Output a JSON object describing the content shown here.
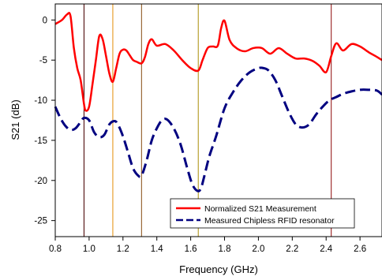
{
  "chart_data": {
    "type": "line",
    "xlabel": "Frequency (GHz)",
    "ylabel": "S21 (dB)",
    "xlim": [
      0.8,
      2.73
    ],
    "ylim": [
      -27,
      2
    ],
    "xticks": [
      0.8,
      1.0,
      1.2,
      1.4,
      1.6,
      1.8,
      2.0,
      2.2,
      2.4,
      2.6
    ],
    "xtick_labels": [
      "0.8",
      "1.0",
      "1.2",
      "1.4",
      "1.6",
      "1.8",
      "2.0",
      "2.2",
      "2.4",
      "2.6"
    ],
    "yticks": [
      0,
      -5,
      -10,
      -15,
      -20,
      -25
    ],
    "ytick_labels": [
      "0",
      "-5",
      "-10",
      "-15",
      "-20",
      "-25"
    ],
    "grid": false,
    "legend_position": "bottom-right",
    "vertical_lines": [
      {
        "x": 0.97,
        "color": "#5a1a1a"
      },
      {
        "x": 1.14,
        "color": "#e8a030"
      },
      {
        "x": 1.31,
        "color": "#9a6a3a"
      },
      {
        "x": 1.645,
        "color": "#b8a030"
      },
      {
        "x": 2.43,
        "color": "#a03030"
      }
    ],
    "series": [
      {
        "name": "Normalized S21 Measurement",
        "color": "#ff0000",
        "style": "solid",
        "x": [
          0.8,
          0.84,
          0.87,
          0.89,
          0.91,
          0.93,
          0.95,
          0.97,
          0.98,
          1.0,
          1.02,
          1.04,
          1.06,
          1.08,
          1.1,
          1.12,
          1.14,
          1.16,
          1.18,
          1.2,
          1.22,
          1.24,
          1.26,
          1.28,
          1.31,
          1.33,
          1.35,
          1.37,
          1.4,
          1.45,
          1.5,
          1.55,
          1.6,
          1.645,
          1.67,
          1.7,
          1.73,
          1.76,
          1.78,
          1.8,
          1.83,
          1.87,
          1.92,
          1.97,
          2.02,
          2.07,
          2.12,
          2.17,
          2.22,
          2.27,
          2.32,
          2.36,
          2.4,
          2.43,
          2.46,
          2.5,
          2.55,
          2.6,
          2.65,
          2.7,
          2.73
        ],
        "y": [
          -0.5,
          0.0,
          0.7,
          0.5,
          -3.5,
          -6.0,
          -7.5,
          -10.5,
          -11.3,
          -10.8,
          -8.0,
          -5.0,
          -2.0,
          -2.4,
          -4.5,
          -6.7,
          -7.7,
          -6.0,
          -4.2,
          -3.7,
          -3.8,
          -4.4,
          -5.0,
          -5.2,
          -5.4,
          -4.6,
          -3.0,
          -2.4,
          -3.2,
          -3.0,
          -3.8,
          -5.0,
          -6.0,
          -6.3,
          -5.0,
          -3.5,
          -3.3,
          -3.2,
          -1.0,
          -0.1,
          -2.5,
          -3.5,
          -3.9,
          -3.5,
          -3.5,
          -4.2,
          -3.5,
          -4.2,
          -4.8,
          -4.8,
          -5.1,
          -5.7,
          -6.5,
          -4.5,
          -2.9,
          -3.8,
          -3.0,
          -3.3,
          -4.0,
          -4.6,
          -5.0
        ]
      },
      {
        "name": "Measured Chipless RFID resonator",
        "color": "#000080",
        "style": "dashed",
        "x": [
          0.8,
          0.83,
          0.86,
          0.89,
          0.92,
          0.95,
          0.97,
          1.0,
          1.03,
          1.06,
          1.09,
          1.12,
          1.15,
          1.17,
          1.2,
          1.23,
          1.26,
          1.29,
          1.31,
          1.34,
          1.37,
          1.4,
          1.43,
          1.46,
          1.5,
          1.54,
          1.58,
          1.61,
          1.64,
          1.66,
          1.68,
          1.71,
          1.75,
          1.8,
          1.85,
          1.9,
          1.95,
          2.0,
          2.03,
          2.06,
          2.1,
          2.14,
          2.18,
          2.22,
          2.26,
          2.3,
          2.34,
          2.38,
          2.42,
          2.46,
          2.5,
          2.55,
          2.6,
          2.65,
          2.7,
          2.73
        ],
        "y": [
          -10.8,
          -12.2,
          -13.2,
          -13.7,
          -13.5,
          -12.7,
          -12.2,
          -12.5,
          -14.0,
          -14.6,
          -14.3,
          -13.0,
          -12.6,
          -13.0,
          -14.5,
          -16.5,
          -18.5,
          -19.4,
          -19.4,
          -17.5,
          -15.0,
          -13.5,
          -12.5,
          -12.4,
          -13.5,
          -15.5,
          -18.5,
          -20.5,
          -21.3,
          -21.0,
          -19.5,
          -17.0,
          -14.5,
          -11.0,
          -9.0,
          -7.5,
          -6.5,
          -6.0,
          -6.0,
          -6.3,
          -7.5,
          -9.5,
          -11.5,
          -13.0,
          -13.4,
          -13.0,
          -11.8,
          -10.8,
          -10.0,
          -9.6,
          -9.2,
          -8.9,
          -8.7,
          -8.7,
          -8.8,
          -9.3
        ]
      }
    ]
  }
}
